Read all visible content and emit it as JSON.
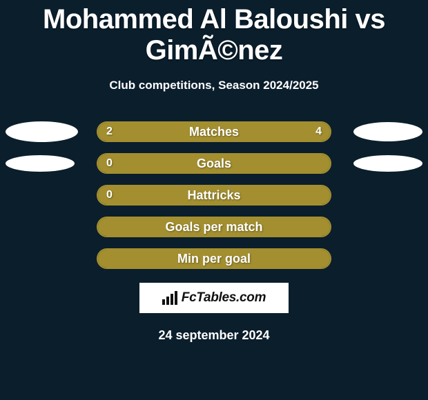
{
  "title": "Mohammed Al Baloushi vs GimÃ©nez",
  "subtitle": "Club competitions, Season 2024/2025",
  "colors": {
    "background": "#0b1e2c",
    "bar_fill": "#a38f2f",
    "bar_border": "#a38f2f",
    "text": "#ffffff",
    "watermark_bg": "#ffffff",
    "watermark_text": "#111111"
  },
  "avatar_sizes": {
    "row0_left": {
      "w": 105,
      "h": 30
    },
    "row0_right": {
      "w": 100,
      "h": 28
    },
    "row1_left": {
      "w": 100,
      "h": 24
    },
    "row1_right": {
      "w": 100,
      "h": 24
    }
  },
  "bars": [
    {
      "key": "matches",
      "label": "Matches",
      "left_value": "2",
      "right_value": "4",
      "left_pct": 33,
      "right_pct": 67,
      "show_left_avatar": true,
      "show_right_avatar": true,
      "avatar_row": 0
    },
    {
      "key": "goals",
      "label": "Goals",
      "left_value": "0",
      "right_value": "",
      "left_pct": 0,
      "right_pct": 100,
      "show_left_avatar": true,
      "show_right_avatar": true,
      "avatar_row": 1
    },
    {
      "key": "hattricks",
      "label": "Hattricks",
      "left_value": "0",
      "right_value": "",
      "left_pct": 0,
      "right_pct": 100,
      "show_left_avatar": false,
      "show_right_avatar": false
    },
    {
      "key": "goals-per-match",
      "label": "Goals per match",
      "left_value": "",
      "right_value": "",
      "left_pct": 0,
      "right_pct": 100,
      "show_left_avatar": false,
      "show_right_avatar": false
    },
    {
      "key": "min-per-goal",
      "label": "Min per goal",
      "left_value": "",
      "right_value": "",
      "left_pct": 0,
      "right_pct": 100,
      "show_left_avatar": false,
      "show_right_avatar": false
    }
  ],
  "watermark": "FcTables.com",
  "footer_date": "24 september 2024"
}
